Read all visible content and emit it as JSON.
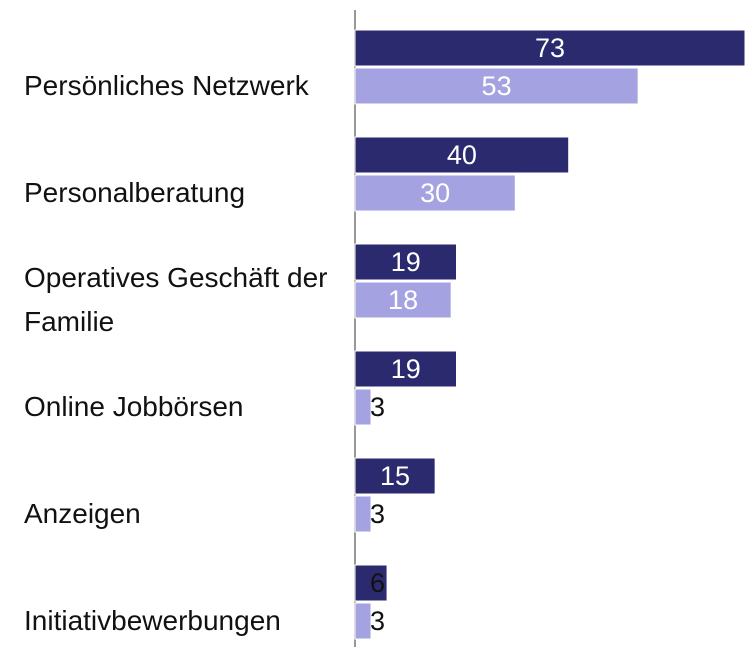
{
  "chart_data": {
    "type": "bar",
    "orientation": "horizontal",
    "categories": [
      "Persönliches Netzwerk",
      "Personalberatung",
      "Operatives Geschäft der Familie",
      "Online Jobbörsen",
      "Anzeigen",
      "Initiativbewerbungen"
    ],
    "series": [
      {
        "color": "#2b2a6e",
        "values": [
          73,
          40,
          19,
          19,
          15,
          6
        ]
      },
      {
        "color": "#a4a2e0",
        "values": [
          53,
          30,
          18,
          3,
          3,
          3
        ]
      }
    ],
    "xlim": [
      0,
      73
    ]
  }
}
